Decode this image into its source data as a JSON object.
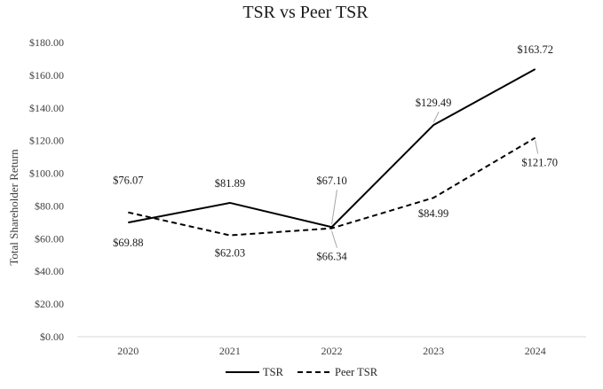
{
  "chart_data": {
    "type": "line",
    "title": "TSR vs Peer TSR",
    "xlabel": "",
    "ylabel": "Total Shareholder Return",
    "categories": [
      "2020",
      "2021",
      "2022",
      "2023",
      "2024"
    ],
    "yticks": [
      "$0.00",
      "$20.00",
      "$40.00",
      "$60.00",
      "$80.00",
      "$100.00",
      "$120.00",
      "$140.00",
      "$160.00",
      "$180.00"
    ],
    "ylim": [
      0,
      180
    ],
    "grid": false,
    "legend_position": "bottom",
    "series": [
      {
        "name": "TSR",
        "style": "solid",
        "color": "#000000",
        "values": [
          69.88,
          81.89,
          67.1,
          129.49,
          163.72
        ],
        "labels": [
          "$69.88",
          "$81.89",
          "$67.10",
          "$129.49",
          "$163.72"
        ]
      },
      {
        "name": "Peer TSR",
        "style": "dashed",
        "color": "#000000",
        "values": [
          76.07,
          62.03,
          66.34,
          84.99,
          121.7
        ],
        "labels": [
          "$76.07",
          "$62.03",
          "$66.34",
          "$84.99",
          "$121.70"
        ]
      }
    ]
  }
}
